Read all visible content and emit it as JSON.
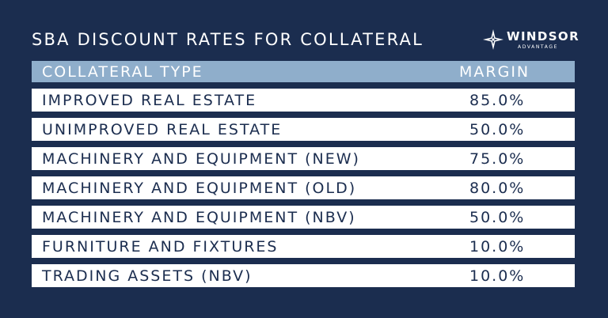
{
  "title": "SBA DISCOUNT RATES FOR COLLATERAL",
  "logo": {
    "name": "WINDSOR",
    "subtitle": "ADVANTAGE",
    "icon": "compass-star-icon",
    "color": "#ffffff"
  },
  "colors": {
    "background": "#1b2d4f",
    "header_row": "#8faecb",
    "row": "#ffffff",
    "row_text": "#1b2d4f"
  },
  "table": {
    "headers": {
      "type": "COLLATERAL TYPE",
      "margin": "MARGIN"
    },
    "rows": [
      {
        "type": "IMPROVED REAL ESTATE",
        "margin": "85.0%"
      },
      {
        "type": "UNIMPROVED REAL ESTATE",
        "margin": "50.0%"
      },
      {
        "type": "MACHINERY AND EQUIPMENT (NEW)",
        "margin": "75.0%"
      },
      {
        "type": "MACHINERY AND EQUIPMENT (OLD)",
        "margin": "80.0%"
      },
      {
        "type": "MACHINERY AND EQUIPMENT (NBV)",
        "margin": "50.0%"
      },
      {
        "type": "FURNITURE AND FIXTURES",
        "margin": "10.0%"
      },
      {
        "type": "TRADING ASSETS (NBV)",
        "margin": "10.0%"
      }
    ]
  }
}
